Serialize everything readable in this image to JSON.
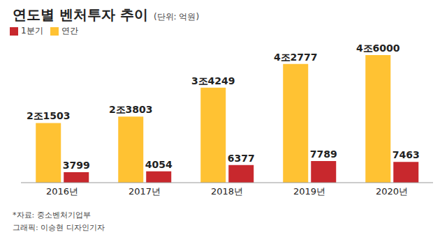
{
  "chart_data": {
    "type": "bar",
    "title": "연도별 벤처투자 추이",
    "subtitle": "(단위: 억원)",
    "categories": [
      "2016년",
      "2017년",
      "2018년",
      "2019년",
      "2020년"
    ],
    "series": [
      {
        "name": "연간",
        "color": "#FFC233",
        "values": [
          21503,
          23803,
          34249,
          42777,
          46000
        ],
        "value_labels": [
          "2조1503",
          "2조3803",
          "3조4249",
          "4조2777",
          "4조6000"
        ]
      },
      {
        "name": "1분기",
        "color": "#C8282D",
        "values": [
          3799,
          4054,
          6377,
          7789,
          7463
        ]
      }
    ],
    "ylim": [
      0,
      46000
    ],
    "data_labels": true,
    "legend": "upper left",
    "tick_labels": "x",
    "annotations": [
      "*자료: 중소벤처기업부",
      "그래픽: 이승현 디자인기자"
    ]
  }
}
